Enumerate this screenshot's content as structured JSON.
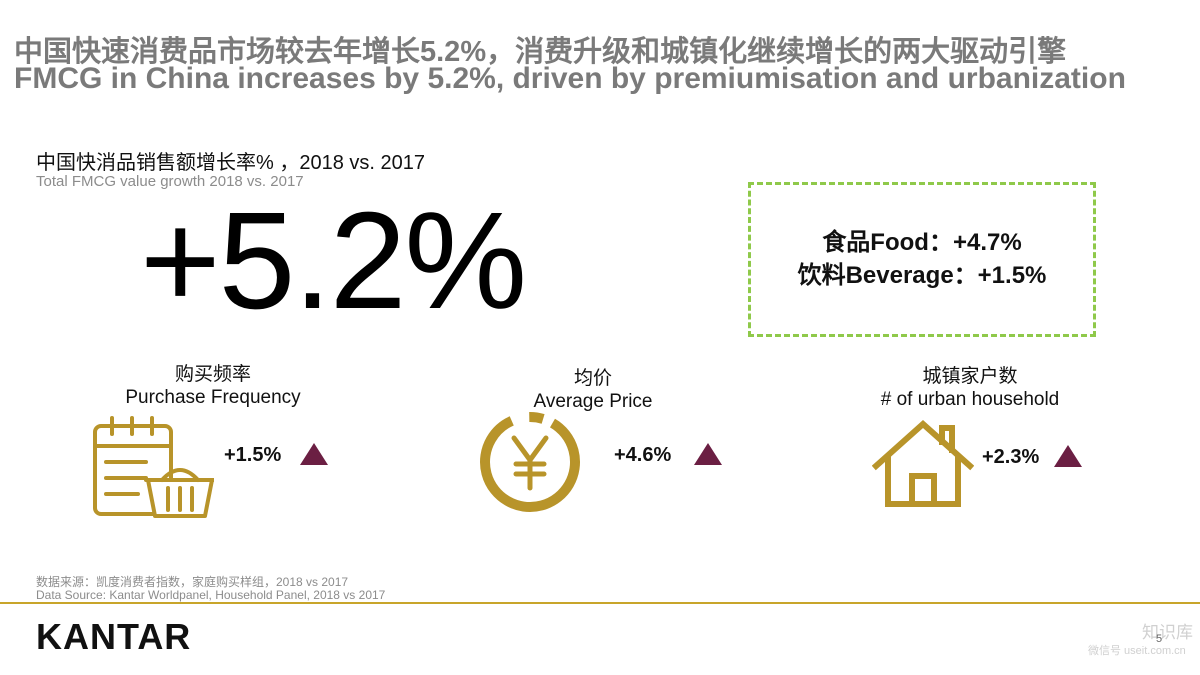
{
  "title": {
    "cn": "中国快速消费品市场较去年增长5.2%，消费升级和城镇化继续增长的两大驱动引擎",
    "en": "FMCG in China increases by 5.2%, driven by premiumisation and urbanization"
  },
  "subtitle": {
    "cn": "中国快消品销售额增长率% ，2018 vs. 2017",
    "en": "Total FMCG value growth 2018 vs. 2017"
  },
  "headline_value": "+5.2%",
  "category_box": {
    "food": "食品Food：+4.7%",
    "beverage": "饮料Beverage：+1.5%"
  },
  "metrics": [
    {
      "label_cn": "购买频率",
      "label_en": "Purchase Frequency",
      "value": "+1.5%",
      "icon": "calendar-basket-icon"
    },
    {
      "label_cn": "均价",
      "label_en": "Average Price",
      "value": "+4.6%",
      "icon": "yen-coin-icon"
    },
    {
      "label_cn": "城镇家户数",
      "label_en": "# of urban household",
      "value": "+2.3%",
      "icon": "house-icon"
    }
  ],
  "source": {
    "cn": "数据来源：凯度消费者指数，家庭购买样组，2018 vs 2017",
    "en": "Data Source: Kantar Worldpanel, Household Panel, 2018 vs 2017"
  },
  "logo": "KANTAR",
  "page_number": "5",
  "watermark": {
    "cn": "知识库",
    "en": "微信号 useit.com.cn"
  },
  "colors": {
    "accent_gold": "#b8942a",
    "triangle": "#6b1f43",
    "dash_green": "#8fc94a",
    "title_gray": "#7a7a7a"
  }
}
